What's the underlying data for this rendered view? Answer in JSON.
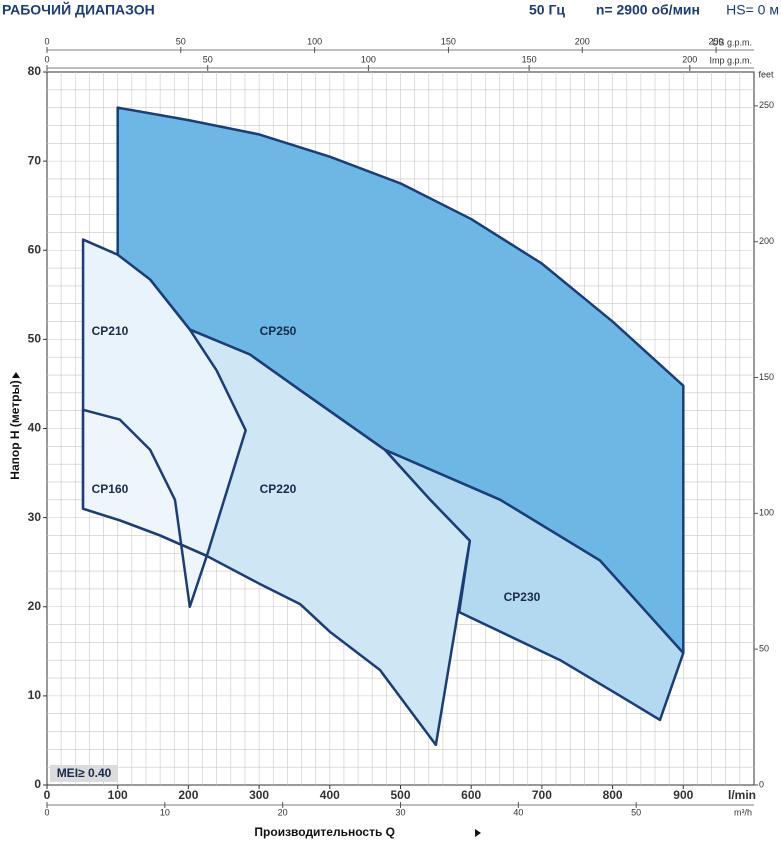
{
  "chart_data": {
    "type": "region",
    "title": "РАБОЧИЙ ДИАПАЗОН",
    "subtitle": [
      "50 Гц",
      "n= 2900 об/мин",
      "HS= 0 м"
    ],
    "xlabel": "Производительность Q",
    "x_unit": "l/min",
    "ylabel": "Напор H (метры)",
    "annotation": "MEI≥ 0.40",
    "xlim": [
      0,
      1000
    ],
    "ylim": [
      0,
      80
    ],
    "xticks": [
      0,
      100,
      200,
      300,
      400,
      500,
      600,
      700,
      800,
      900
    ],
    "yticks": [
      0,
      10,
      20,
      30,
      40,
      50,
      60,
      70,
      80
    ],
    "grid": true,
    "minor_grid": 5,
    "extra_axes": [
      {
        "side": "top",
        "unit": "US g.p.m.",
        "lim": [
          0,
          264.17
        ],
        "ticks": [
          0,
          50,
          100,
          150,
          200,
          250
        ]
      },
      {
        "side": "top",
        "unit": "Imp g.p.m.",
        "lim": [
          0,
          219.97
        ],
        "ticks": [
          0,
          50,
          100,
          150,
          200
        ]
      },
      {
        "side": "bottom",
        "unit": "m³/h",
        "lim": [
          0,
          60
        ],
        "ticks": [
          0,
          10,
          20,
          30,
          40,
          50
        ]
      },
      {
        "side": "right",
        "unit": "feet",
        "lim": [
          0,
          262.47
        ],
        "ticks": [
          0,
          50,
          100,
          150,
          200,
          250
        ]
      }
    ],
    "stroke": "#1b3d78",
    "series": [
      {
        "name": "CP250",
        "color": "#6cb7e3",
        "x": [
          100,
          200,
          300,
          400,
          500,
          600,
          700,
          800,
          900,
          900,
          782,
          641,
          478,
          358,
          287,
          202,
          146,
          100
        ],
        "values": [
          76,
          74.6,
          73,
          70.5,
          67.5,
          63.5,
          58.5,
          52,
          44.8,
          14.8,
          25.2,
          32,
          37.6,
          44.3,
          48.3,
          51.1,
          56.7,
          59.2
        ]
      },
      {
        "name": "CP230",
        "color": "#b3d9f1",
        "x": [
          478,
          641,
          782,
          900,
          867,
          796,
          726,
          583,
          598,
          542
        ],
        "values": [
          37.6,
          32,
          25.2,
          14.8,
          7.3,
          10.7,
          14,
          19.4,
          27.4,
          32
        ]
      },
      {
        "name": "CP220",
        "color": "#cfe6f5",
        "x": [
          202,
          287,
          358,
          478,
          542,
          598,
          550,
          471,
          400,
          358,
          300,
          226
        ],
        "values": [
          51.1,
          48.3,
          44.3,
          37.6,
          32,
          27.4,
          4.5,
          12.9,
          17.2,
          20.3,
          22.6,
          25.7
        ]
      },
      {
        "name": "CP210",
        "color": "#e8f3fb",
        "x": [
          51,
          100,
          146,
          202,
          240,
          281,
          226,
          160,
          103,
          51
        ],
        "values": [
          61.2,
          59.5,
          56.7,
          51.1,
          46.5,
          39.8,
          25.7,
          28,
          29.7,
          31
        ]
      },
      {
        "name": "CP160",
        "color": "#eef6fc",
        "x": [
          51,
          103,
          146,
          181,
          202,
          226,
          160,
          103,
          51
        ],
        "values": [
          42.1,
          41,
          37.6,
          32,
          20,
          25.7,
          28,
          29.7,
          31
        ]
      }
    ]
  }
}
